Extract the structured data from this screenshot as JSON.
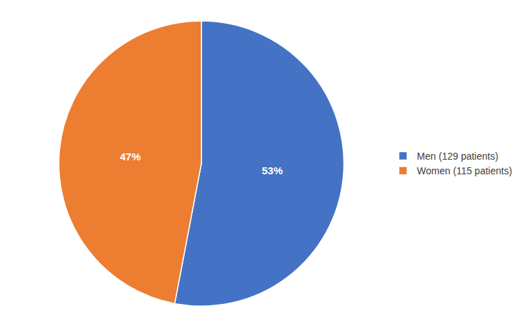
{
  "chart_data": {
    "type": "pie",
    "categories": [
      "Men (129 patients)",
      "Women (115 patients)"
    ],
    "values": [
      53,
      47
    ],
    "value_labels": [
      "53%",
      "47%"
    ],
    "colors": [
      "#4472C4",
      "#ED7D31"
    ],
    "data_labels": true,
    "legend": "right"
  }
}
